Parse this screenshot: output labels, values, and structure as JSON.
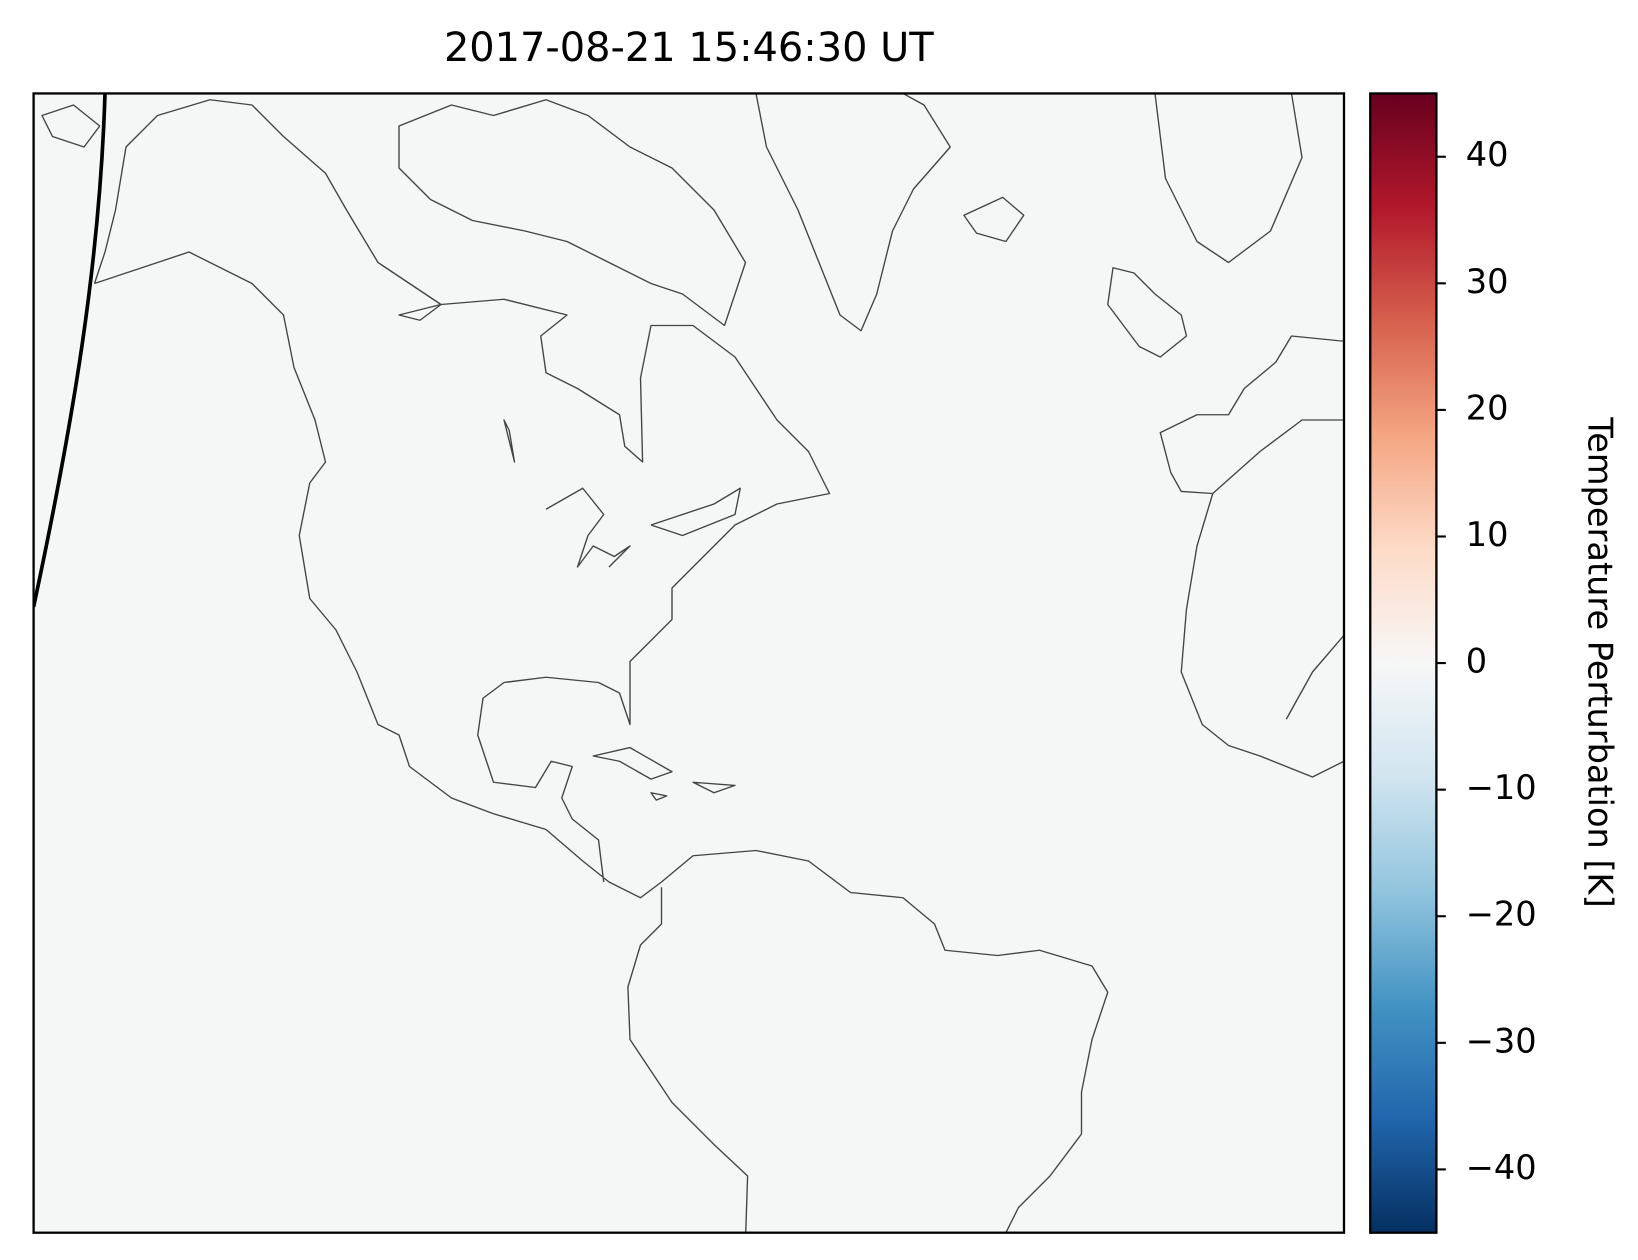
{
  "chart_data": {
    "type": "map",
    "title": "2017-08-21 15:46:30 UT",
    "colorbar_label": "Temperature Perturbation [K]",
    "colormap": [
      "#053061",
      "#2166ac",
      "#4393c3",
      "#92c5de",
      "#d1e5f0",
      "#f7f7f7",
      "#fddbc7",
      "#f4a582",
      "#d6604d",
      "#b2182b",
      "#67001f"
    ],
    "clim": [
      -45,
      45
    ],
    "cticks": [
      {
        "value": -40,
        "label": "−40"
      },
      {
        "value": -30,
        "label": "−30"
      },
      {
        "value": -20,
        "label": "−20"
      },
      {
        "value": -10,
        "label": "−10"
      },
      0,
      10,
      20,
      30,
      40
    ]
  }
}
